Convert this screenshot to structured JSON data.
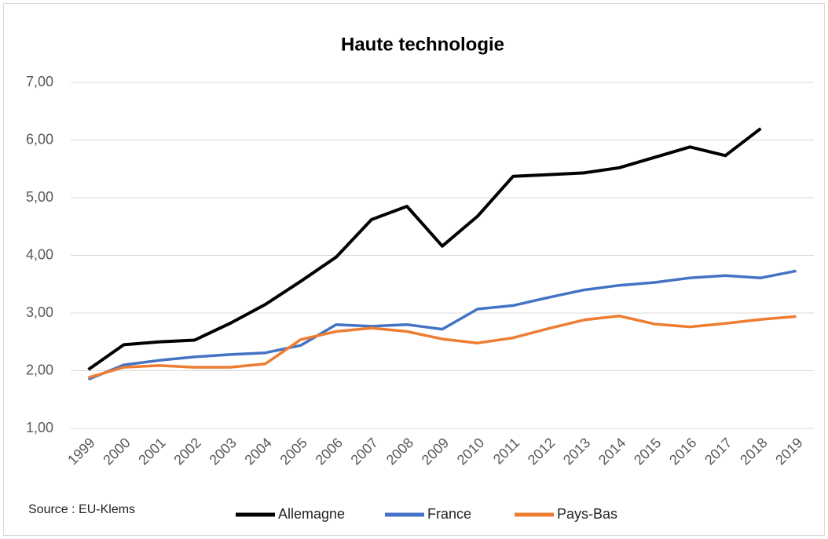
{
  "chart_data": {
    "type": "line",
    "title": "Haute technologie",
    "annotation": "Source : EU-Klems",
    "categories": [
      "1999",
      "2000",
      "2001",
      "2002",
      "2003",
      "2004",
      "2005",
      "2006",
      "2007",
      "2008",
      "2009",
      "2010",
      "2011",
      "2012",
      "2013",
      "2014",
      "2015",
      "2016",
      "2017",
      "2018",
      "2019"
    ],
    "series": [
      {
        "name": "Allemagne",
        "color": "#000000",
        "values": [
          2.02,
          2.45,
          2.5,
          2.53,
          2.82,
          3.15,
          3.55,
          3.97,
          4.62,
          4.85,
          4.16,
          4.68,
          5.37,
          5.4,
          5.43,
          5.52,
          5.7,
          5.88,
          5.73,
          6.2,
          null
        ]
      },
      {
        "name": "France",
        "color": "#4472c4",
        "values": [
          1.85,
          2.1,
          2.18,
          2.24,
          2.28,
          2.31,
          2.44,
          2.8,
          2.77,
          2.8,
          2.72,
          3.07,
          3.13,
          3.27,
          3.4,
          3.48,
          3.53,
          3.61,
          3.65,
          3.61,
          3.73
        ]
      },
      {
        "name": "Pays-Bas",
        "color": "#ed7d31",
        "values": [
          1.88,
          2.06,
          2.09,
          2.06,
          2.06,
          2.12,
          2.54,
          2.68,
          2.74,
          2.68,
          2.55,
          2.48,
          2.57,
          2.73,
          2.88,
          2.95,
          2.81,
          2.76,
          2.82,
          2.89,
          2.94
        ]
      }
    ],
    "ylim": [
      1,
      7
    ],
    "yticks": [
      {
        "value": 1,
        "label": "1,00"
      },
      {
        "value": 2,
        "label": "2,00"
      },
      {
        "value": 3,
        "label": "3,00"
      },
      {
        "value": 4,
        "label": "4,00"
      },
      {
        "value": 5,
        "label": "5,00"
      },
      {
        "value": 6,
        "label": "6,00"
      },
      {
        "value": 7,
        "label": "7,00"
      }
    ],
    "grid": true,
    "legend": "bottom"
  }
}
